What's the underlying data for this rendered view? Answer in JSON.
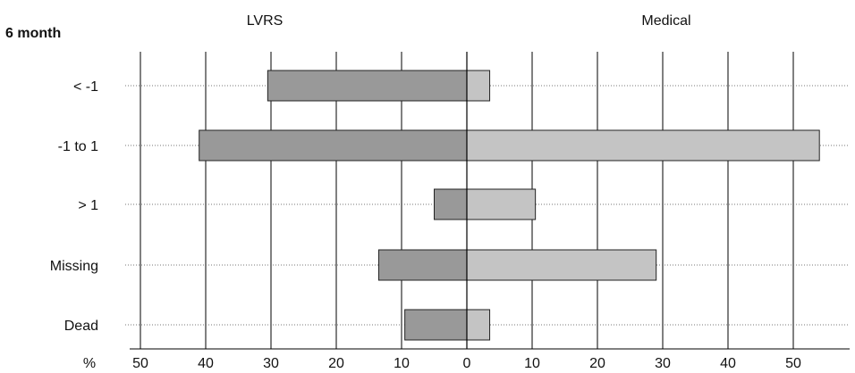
{
  "chart_data": {
    "type": "bar",
    "orientation": "horizontal",
    "layout": "diverging",
    "corner_label": "6 month",
    "headers": {
      "left": "LVRS",
      "right": "Medical"
    },
    "categories": [
      "< -1",
      "-1 to 1",
      "> 1",
      "Missing",
      "Dead"
    ],
    "series": [
      {
        "name": "LVRS",
        "direction": "left",
        "color": "#999999",
        "values": [
          30.5,
          41,
          5,
          13.5,
          9.5
        ]
      },
      {
        "name": "Medical",
        "direction": "right",
        "color": "#c4c4c4",
        "values": [
          3.5,
          54,
          10.5,
          29,
          3.5
        ]
      }
    ],
    "axis": {
      "unit_label": "%",
      "ticks": [
        {
          "label": "50",
          "value": -50
        },
        {
          "label": "40",
          "value": -40
        },
        {
          "label": "30",
          "value": -30
        },
        {
          "label": "20",
          "value": -20
        },
        {
          "label": "10",
          "value": -10
        },
        {
          "label": "0",
          "value": 0
        },
        {
          "label": "10",
          "value": 10
        },
        {
          "label": "20",
          "value": 20
        },
        {
          "label": "30",
          "value": 30
        },
        {
          "label": "40",
          "value": 40
        },
        {
          "label": "50",
          "value": 50
        }
      ],
      "range": [
        -50,
        58
      ]
    },
    "grid": true
  }
}
